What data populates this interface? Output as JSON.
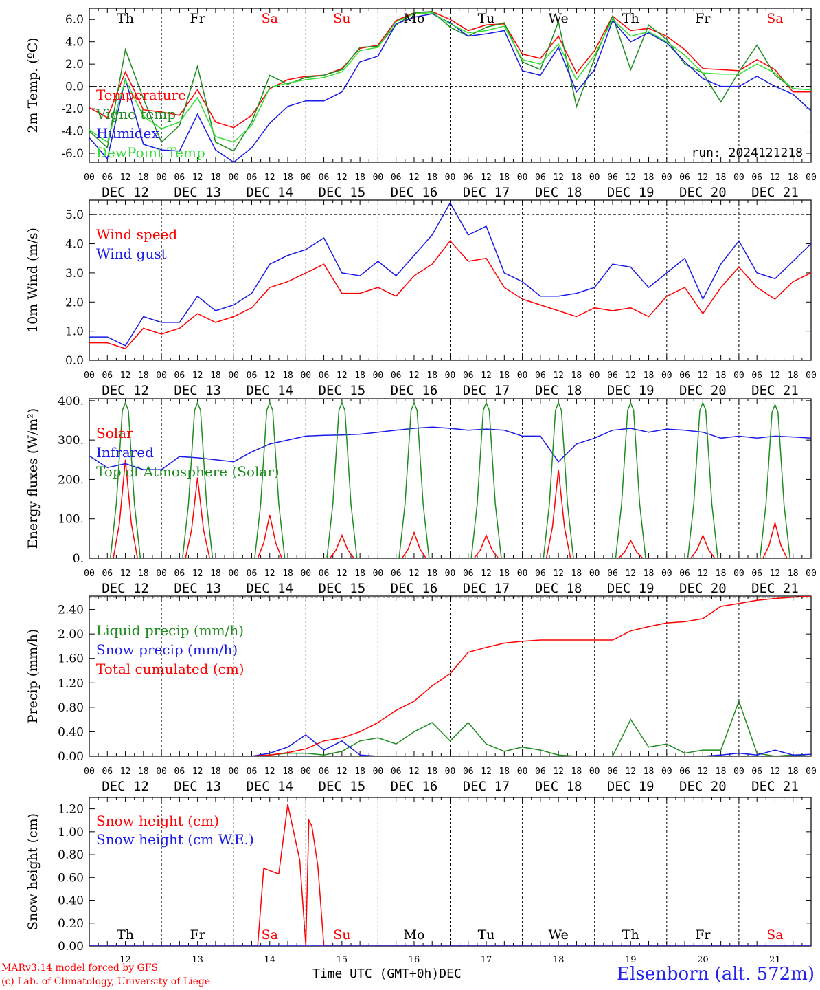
{
  "footer": {
    "credit_line1": "MARv3.14 model forced by GFS",
    "credit_line2": "(c) Lab. of Climatology, University of Liege",
    "station": "Elsenborn (alt. 572m)",
    "xaxis_title": "Time UTC (GMT+0h)",
    "xaxis_unit": "DEC"
  },
  "colors": {
    "red": "#ff0000",
    "green": "#1e8c1e",
    "blue": "#1a1ae6",
    "lime": "#33dd33",
    "weekend": "#ff0000"
  },
  "chart_data": [
    {
      "type": "line",
      "ylabel": "2m Temp. (ºC)",
      "ylim": [
        -6.8,
        7.0
      ],
      "yticks": [
        "6.0",
        "4.0",
        "2.0",
        "0.0",
        "-2.0",
        "-4.0",
        "-6.0"
      ],
      "ytick_values": [
        6,
        4,
        2,
        0,
        -2,
        -4,
        -6
      ],
      "annotation": "run: 2024121218",
      "day_labels": [
        "Th",
        "Fr",
        "Sa",
        "Su",
        "Mo",
        "Tu",
        "We",
        "Th",
        "Fr",
        "Sa"
      ],
      "date_labels": [
        "DEC 12",
        "DEC 13",
        "DEC 14",
        "DEC 15",
        "DEC 16",
        "DEC 17",
        "DEC 18",
        "DEC 19",
        "DEC 20",
        "DEC 21"
      ],
      "hour_labels": [
        "00",
        "06",
        "12",
        "18"
      ],
      "x_hours": [
        0,
        6,
        12,
        18,
        24,
        30,
        36,
        42,
        48,
        54,
        60,
        66,
        72,
        78,
        84,
        90,
        96,
        102,
        108,
        114,
        120,
        126,
        132,
        138,
        144,
        150,
        156,
        162,
        168,
        174,
        180,
        186,
        192,
        198,
        204,
        210,
        216,
        222,
        228,
        234,
        240
      ],
      "series": [
        {
          "name": "Temperature",
          "color": "red",
          "values": [
            -1.9,
            -2.8,
            1.3,
            -2.1,
            -2.3,
            -2.6,
            -0.3,
            -3.2,
            -3.7,
            -2.6,
            -0.2,
            0.6,
            0.9,
            1.0,
            1.6,
            3.4,
            3.7,
            5.9,
            6.6,
            6.7,
            6.0,
            5.0,
            5.5,
            5.6,
            2.9,
            2.5,
            4.5,
            1.2,
            3.2,
            6.3,
            5.0,
            5.2,
            4.5,
            3.3,
            1.6,
            1.5,
            1.4,
            2.4,
            1.5,
            -0.5,
            -0.5
          ]
        },
        {
          "name": "Vigne temp",
          "color": "green",
          "values": [
            -4.0,
            -5.5,
            3.3,
            -1.1,
            -5.0,
            -3.5,
            1.8,
            -5.0,
            -5.8,
            -3.2,
            1.0,
            0.2,
            0.8,
            1.0,
            1.5,
            3.5,
            3.6,
            5.5,
            6.6,
            6.7,
            5.3,
            4.5,
            5.3,
            5.7,
            2.2,
            1.5,
            5.8,
            -1.8,
            2.5,
            6.3,
            1.5,
            5.5,
            4.2,
            2.0,
            1.2,
            -1.4,
            1.3,
            3.7,
            1.0,
            -0.2,
            -0.3
          ]
        },
        {
          "name": "Humidex",
          "color": "blue",
          "values": [
            -4.6,
            -6.5,
            0.7,
            -5.2,
            -5.7,
            -5.8,
            -2.5,
            -5.7,
            -6.8,
            -5.5,
            -3.3,
            -1.8,
            -1.3,
            -1.3,
            -0.5,
            2.2,
            2.7,
            5.6,
            6.2,
            6.5,
            5.7,
            4.5,
            4.7,
            5.0,
            1.4,
            1.0,
            3.5,
            -0.5,
            1.5,
            5.9,
            4.0,
            4.8,
            3.9,
            2.2,
            0.7,
            0.0,
            0.0,
            0.9,
            0.0,
            -0.7,
            -2.2
          ]
        },
        {
          "name": "DewPoint Temp",
          "color": "lime",
          "values": [
            -3.9,
            -5.0,
            0.6,
            -2.7,
            -3.8,
            -3.2,
            -1.0,
            -4.5,
            -5.0,
            -3.5,
            -0.1,
            0.3,
            0.6,
            0.8,
            1.3,
            3.2,
            3.5,
            5.8,
            6.5,
            6.6,
            5.6,
            4.8,
            5.0,
            5.4,
            2.4,
            2.0,
            3.8,
            0.6,
            2.8,
            6.0,
            4.5,
            4.9,
            4.0,
            2.8,
            1.2,
            1.1,
            1.1,
            2.0,
            1.2,
            -0.2,
            -0.3
          ]
        }
      ]
    },
    {
      "type": "line",
      "ylabel": "10m Wind (m/s)",
      "ylim": [
        0,
        5.5
      ],
      "yticks": [
        "5.0",
        "4.0",
        "3.0",
        "2.0",
        "1.0",
        "0.0"
      ],
      "ytick_values": [
        5,
        4,
        3,
        2,
        1,
        0
      ],
      "dashed_line": 5.0,
      "day_labels": [],
      "date_labels": [
        "DEC 12",
        "DEC 13",
        "DEC 14",
        "DEC 15",
        "DEC 16",
        "DEC 17",
        "DEC 18",
        "DEC 19",
        "DEC 20",
        "DEC 21"
      ],
      "hour_labels": [
        "00",
        "06",
        "12",
        "18"
      ],
      "x_hours": [
        0,
        6,
        12,
        18,
        24,
        30,
        36,
        42,
        48,
        54,
        60,
        66,
        72,
        78,
        84,
        90,
        96,
        102,
        108,
        114,
        120,
        126,
        132,
        138,
        144,
        150,
        156,
        162,
        168,
        174,
        180,
        186,
        192,
        198,
        204,
        210,
        216,
        222,
        228,
        234,
        240
      ],
      "series": [
        {
          "name": "Wind speed",
          "color": "red",
          "values": [
            0.6,
            0.6,
            0.4,
            1.1,
            0.9,
            1.1,
            1.6,
            1.3,
            1.5,
            1.8,
            2.5,
            2.7,
            3.0,
            3.3,
            2.3,
            2.3,
            2.5,
            2.2,
            2.9,
            3.3,
            4.1,
            3.4,
            3.5,
            2.5,
            2.1,
            1.9,
            1.7,
            1.5,
            1.8,
            1.7,
            1.8,
            1.5,
            2.2,
            2.5,
            1.6,
            2.5,
            3.2,
            2.5,
            2.1,
            2.7,
            3.0
          ]
        },
        {
          "name": "Wind gust",
          "color": "blue",
          "values": [
            0.8,
            0.8,
            0.5,
            1.5,
            1.3,
            1.3,
            2.2,
            1.7,
            1.9,
            2.3,
            3.3,
            3.6,
            3.8,
            4.2,
            3.0,
            2.9,
            3.4,
            2.9,
            3.6,
            4.3,
            5.4,
            4.3,
            4.6,
            3.0,
            2.7,
            2.2,
            2.2,
            2.3,
            2.5,
            3.3,
            3.2,
            2.5,
            3.0,
            3.5,
            2.1,
            3.3,
            4.1,
            3.0,
            2.8,
            3.4,
            4.0
          ]
        }
      ]
    },
    {
      "type": "line",
      "ylabel": "Energy fluxes (W/m²)",
      "ylim": [
        0,
        405
      ],
      "yticks": [
        "400.",
        "300.",
        "200.",
        "100.",
        "0."
      ],
      "ytick_values": [
        400,
        300,
        200,
        100,
        0
      ],
      "day_labels": [],
      "date_labels": [
        "DEC 12",
        "DEC 13",
        "DEC 14",
        "DEC 15",
        "DEC 16",
        "DEC 17",
        "DEC 18",
        "DEC 19",
        "DEC 20",
        "DEC 21"
      ],
      "hour_labels": [
        "00",
        "06",
        "12",
        "18"
      ],
      "peak_day_index": [
        0,
        1,
        2,
        3,
        4,
        5,
        6,
        7,
        8,
        9
      ],
      "series": [
        {
          "name": "Solar",
          "color": "red",
          "type": "daily_peaks",
          "peaks": [
            250,
            205,
            110,
            58,
            65,
            58,
            225,
            45,
            58,
            90
          ]
        },
        {
          "name": "Infrared",
          "color": "blue",
          "x": [
            0,
            6,
            12,
            18,
            24,
            30,
            36,
            42,
            48,
            54,
            60,
            66,
            72,
            78,
            84,
            90,
            96,
            102,
            108,
            114,
            120,
            126,
            132,
            138,
            144,
            150,
            156,
            162,
            168,
            174,
            180,
            186,
            192,
            198,
            204,
            210,
            216,
            222,
            228,
            234,
            240
          ],
          "values": [
            260,
            230,
            240,
            225,
            225,
            258,
            255,
            250,
            245,
            270,
            290,
            300,
            310,
            312,
            313,
            315,
            320,
            325,
            330,
            333,
            330,
            325,
            328,
            325,
            310,
            310,
            245,
            290,
            305,
            325,
            330,
            320,
            328,
            325,
            320,
            305,
            310,
            305,
            310,
            308,
            305
          ]
        },
        {
          "name": "Top of Atmosphere (Solar)",
          "color": "green",
          "type": "daily_peaks",
          "peaks": [
            395,
            395,
            395,
            395,
            395,
            395,
            395,
            395,
            395,
            390
          ]
        }
      ]
    },
    {
      "type": "line",
      "ylabel": "Precip (mm/h)",
      "ylim": [
        0,
        2.62
      ],
      "yticks": [
        "2.40",
        "2.00",
        "1.60",
        "1.20",
        "0.80",
        "0.40",
        "0.00"
      ],
      "ytick_values": [
        2.4,
        2.0,
        1.6,
        1.2,
        0.8,
        0.4,
        0.0
      ],
      "dashed_line": 2.6,
      "day_labels": [],
      "date_labels": [
        "DEC 12",
        "DEC 13",
        "DEC 14",
        "DEC 15",
        "DEC 16",
        "DEC 17",
        "DEC 18",
        "DEC 19",
        "DEC 20",
        "DEC 21"
      ],
      "hour_labels": [
        "00",
        "06",
        "12",
        "18"
      ],
      "x_hours": [
        0,
        6,
        12,
        18,
        24,
        30,
        36,
        42,
        48,
        54,
        60,
        66,
        72,
        78,
        84,
        90,
        96,
        102,
        108,
        114,
        120,
        126,
        132,
        138,
        144,
        150,
        156,
        162,
        168,
        174,
        180,
        186,
        192,
        198,
        204,
        210,
        216,
        222,
        228,
        234,
        240
      ],
      "series": [
        {
          "name": "Liquid precip (mm/h)",
          "color": "green",
          "values": [
            0,
            0,
            0,
            0,
            0,
            0,
            0,
            0,
            0,
            0,
            0.02,
            0.05,
            0.05,
            0.02,
            0.08,
            0.25,
            0.3,
            0.2,
            0.4,
            0.55,
            0.25,
            0.55,
            0.2,
            0.08,
            0.15,
            0.1,
            0.02,
            0.0,
            0.0,
            0.0,
            0.6,
            0.15,
            0.2,
            0.05,
            0.1,
            0.1,
            0.9,
            0.05,
            0.0,
            0.02,
            0.0
          ]
        },
        {
          "name": "Snow precip (mm/h)",
          "color": "blue",
          "values": [
            0,
            0,
            0,
            0,
            0,
            0,
            0,
            0,
            0,
            0,
            0.05,
            0.15,
            0.35,
            0.1,
            0.25,
            0.02,
            0.0,
            0.0,
            0.0,
            0.0,
            0.0,
            0.0,
            0.0,
            0.0,
            0.0,
            0.0,
            0.0,
            0.0,
            0.0,
            0.0,
            0.0,
            0.0,
            0.0,
            0.0,
            0.0,
            0.02,
            0.05,
            0.02,
            0.1,
            0.02,
            0.03
          ]
        },
        {
          "name": "Total cumulated (cm)",
          "color": "red",
          "values": [
            0,
            0,
            0,
            0,
            0,
            0,
            0,
            0,
            0,
            0,
            0.02,
            0.06,
            0.12,
            0.25,
            0.3,
            0.4,
            0.55,
            0.75,
            0.9,
            1.15,
            1.35,
            1.7,
            1.78,
            1.85,
            1.88,
            1.9,
            1.9,
            1.9,
            1.9,
            1.9,
            2.05,
            2.12,
            2.18,
            2.2,
            2.25,
            2.45,
            2.5,
            2.55,
            2.58,
            2.6,
            2.62
          ]
        }
      ]
    },
    {
      "type": "line",
      "ylabel": "Snow height (cm)",
      "ylim": [
        0,
        1.3
      ],
      "yticks": [
        "1.20",
        "1.00",
        "0.80",
        "0.60",
        "0.40",
        "0.20",
        "0.00"
      ],
      "ytick_values": [
        1.2,
        1.0,
        0.8,
        0.6,
        0.4,
        0.2,
        0.0
      ],
      "day_labels": [
        "Th",
        "Fr",
        "Sa",
        "Su",
        "Mo",
        "Tu",
        "We",
        "Th",
        "Fr",
        "Sa"
      ],
      "date_labels": [
        "12",
        "13",
        "14",
        "15",
        "16",
        "17",
        "18",
        "19",
        "20",
        "21"
      ],
      "hour_labels": [],
      "series": [
        {
          "name": "Snow height (cm)",
          "color": "red",
          "x": [
            0,
            56,
            58,
            63,
            66,
            70,
            72,
            73,
            74,
            76,
            78,
            240
          ],
          "values": [
            0,
            0,
            0.68,
            0.63,
            1.24,
            0.75,
            0,
            1.1,
            1.05,
            0.7,
            0,
            0
          ]
        },
        {
          "name": "Snow height (cm W.E.)",
          "color": "blue",
          "x": [
            0,
            240
          ],
          "values": [
            0,
            0
          ]
        }
      ]
    }
  ]
}
